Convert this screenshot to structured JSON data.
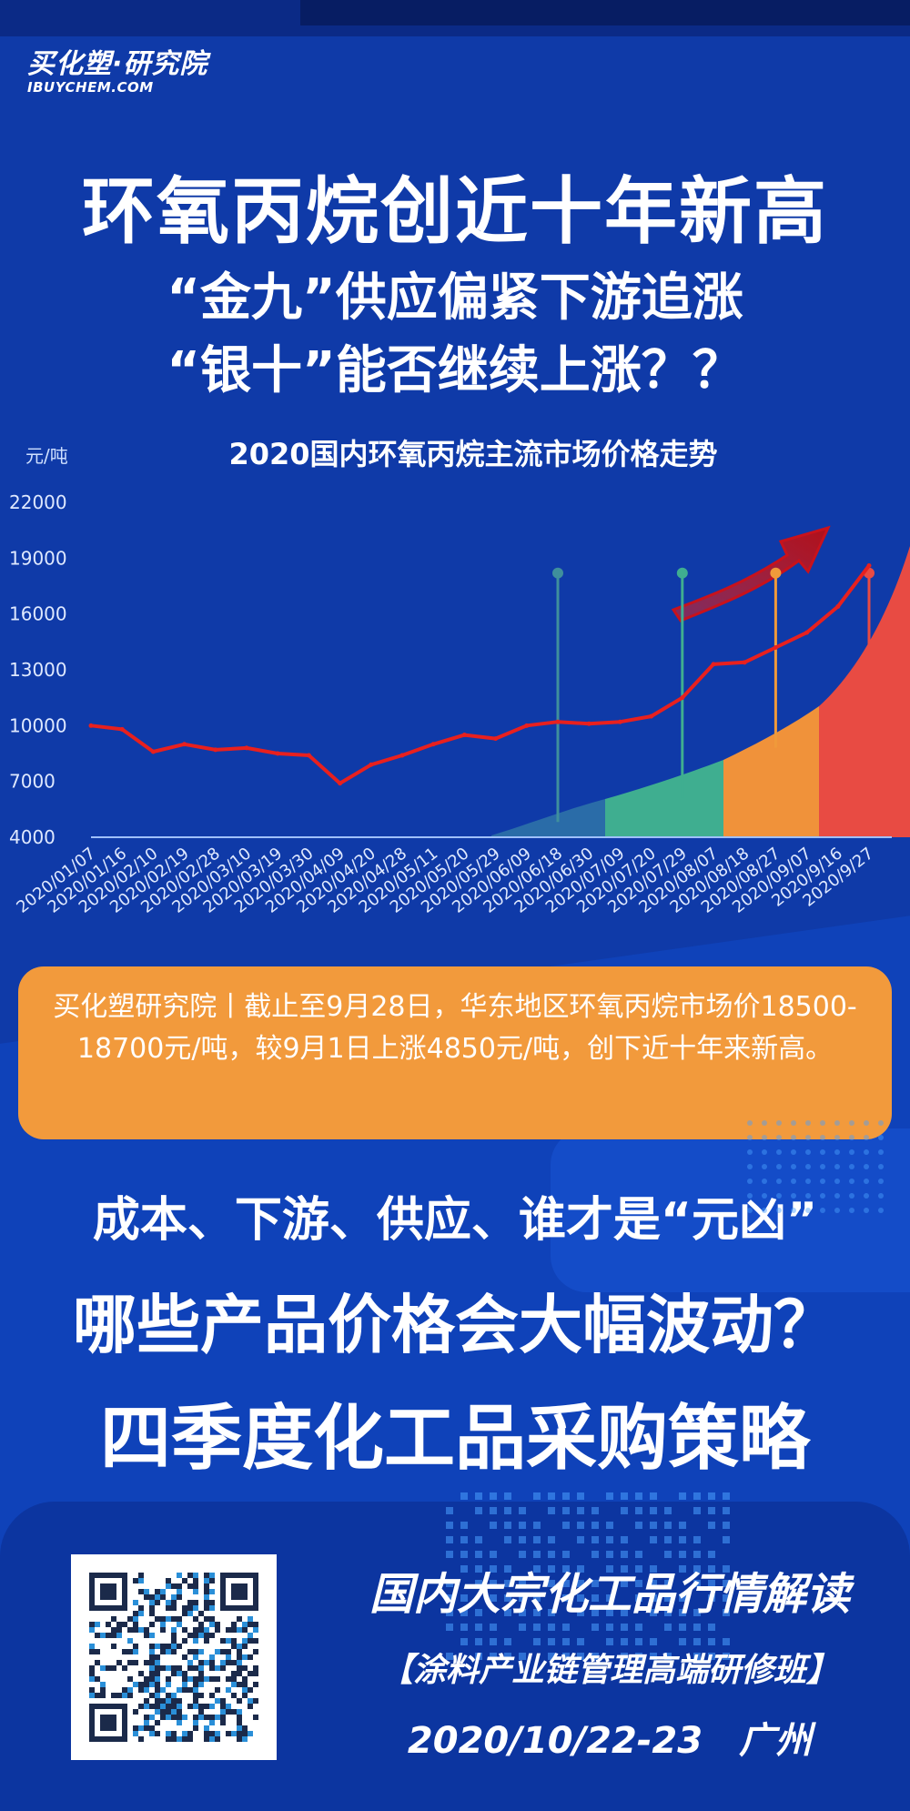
{
  "brand": {
    "name": "买化塑·研究院",
    "domain": "IBUYCHEM.COM"
  },
  "headline": {
    "title": "环氧丙烷创近十年新高",
    "line2": "“金九”供应偏紧下游追涨",
    "line3": "“银十”能否继续上涨？？"
  },
  "chart_data": {
    "type": "line",
    "title": "2020国内环氧丙烷主流市场价格走势",
    "ylabel": "元/吨",
    "ylim": [
      4000,
      22000
    ],
    "yticks": [
      22000,
      19000,
      16000,
      13000,
      10000,
      7000,
      4000
    ],
    "categories": [
      "2020/01/07",
      "2020/01/16",
      "2020/02/10",
      "2020/02/19",
      "2020/02/28",
      "2020/03/10",
      "2020/03/19",
      "2020/03/30",
      "2020/04/09",
      "2020/04/20",
      "2020/04/28",
      "2020/05/11",
      "2020/05/20",
      "2020/05/29",
      "2020/06/09",
      "2020/06/18",
      "2020/06/30",
      "2020/07/09",
      "2020/07/20",
      "2020/07/29",
      "2020/08/07",
      "2020/08/18",
      "2020/08/27",
      "2020/09/07",
      "2020/9/16",
      "2020/9/27"
    ],
    "values": [
      10000,
      9800,
      8600,
      9000,
      8700,
      8800,
      8500,
      8400,
      6900,
      7900,
      8400,
      9000,
      9500,
      9300,
      10000,
      10200,
      10100,
      10200,
      10500,
      11500,
      13300,
      13400,
      14200,
      15000,
      16400,
      18600
    ],
    "series_color": "#e8201e",
    "markers": [
      {
        "category": "2020/06/18",
        "value": 18200,
        "color": "#3f8f9c"
      },
      {
        "category": "2020/07/29",
        "value": 18200,
        "color": "#3fae90"
      },
      {
        "category": "2020/08/27",
        "value": 18200,
        "color": "#f09a3a"
      },
      {
        "category": "2020/9/27",
        "value": 18200,
        "color": "#e84b43"
      }
    ],
    "grid": false
  },
  "notice": {
    "text": "买化塑研究院丨截止至9月28日，华东地区环氧丙烷市场价18500-18700元/吨，较9月1日上涨4850元/吨，创下近十年来新高。"
  },
  "questions": {
    "q1": "成本、下游、供应、谁才是“元凶”",
    "q2": "哪些产品价格会大幅波动？",
    "q3": "四季度化工品采购策略"
  },
  "course": {
    "title": "国内大宗化工品行情解读",
    "subtitle": "【涂料产业链管理高端研修班】",
    "date_place": "2020/10/22-23　广州"
  },
  "colors": {
    "background": "#0f3aa8",
    "notice_bg": "#f29a3c",
    "line": "#e8201e"
  }
}
